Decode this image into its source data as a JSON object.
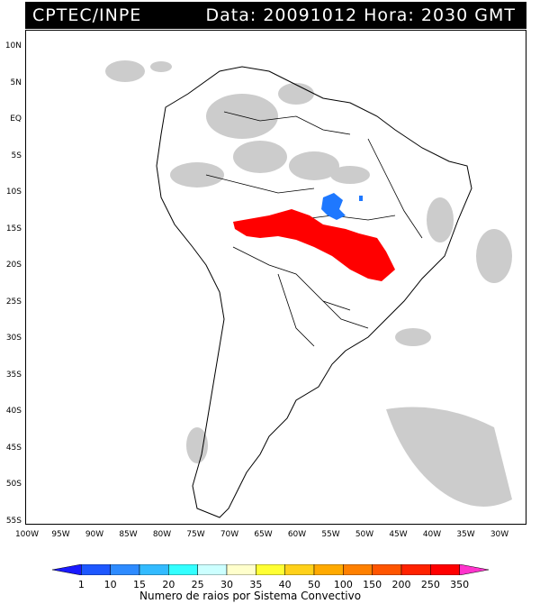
{
  "header": {
    "left": "CPTEC/INPE",
    "right": "Data: 20091012 Hora: 2030 GMT"
  },
  "lat_labels": [
    "10N",
    "5N",
    "EQ",
    "5S",
    "10S",
    "15S",
    "20S",
    "25S",
    "30S",
    "35S",
    "40S",
    "45S",
    "50S",
    "55S"
  ],
  "lon_labels": [
    "100W",
    "95W",
    "90W",
    "85W",
    "80W",
    "75W",
    "70W",
    "65W",
    "60W",
    "55W",
    "50W",
    "45W",
    "40W",
    "35W",
    "30W"
  ],
  "legend": {
    "title": "Numero de raios por Sistema Convectivo",
    "labels": [
      "1",
      "10",
      "15",
      "20",
      "25",
      "30",
      "35",
      "40",
      "50",
      "100",
      "150",
      "200",
      "250",
      "350"
    ],
    "colors": [
      "#1a1aff",
      "#1e58ff",
      "#2e8bff",
      "#33bbff",
      "#33ffff",
      "#ccffff",
      "#ffffcc",
      "#ffff33",
      "#ffd11a",
      "#ffaa00",
      "#ff8000",
      "#ff5500",
      "#ff2200",
      "#ff0000",
      "#ff33cc"
    ]
  }
}
